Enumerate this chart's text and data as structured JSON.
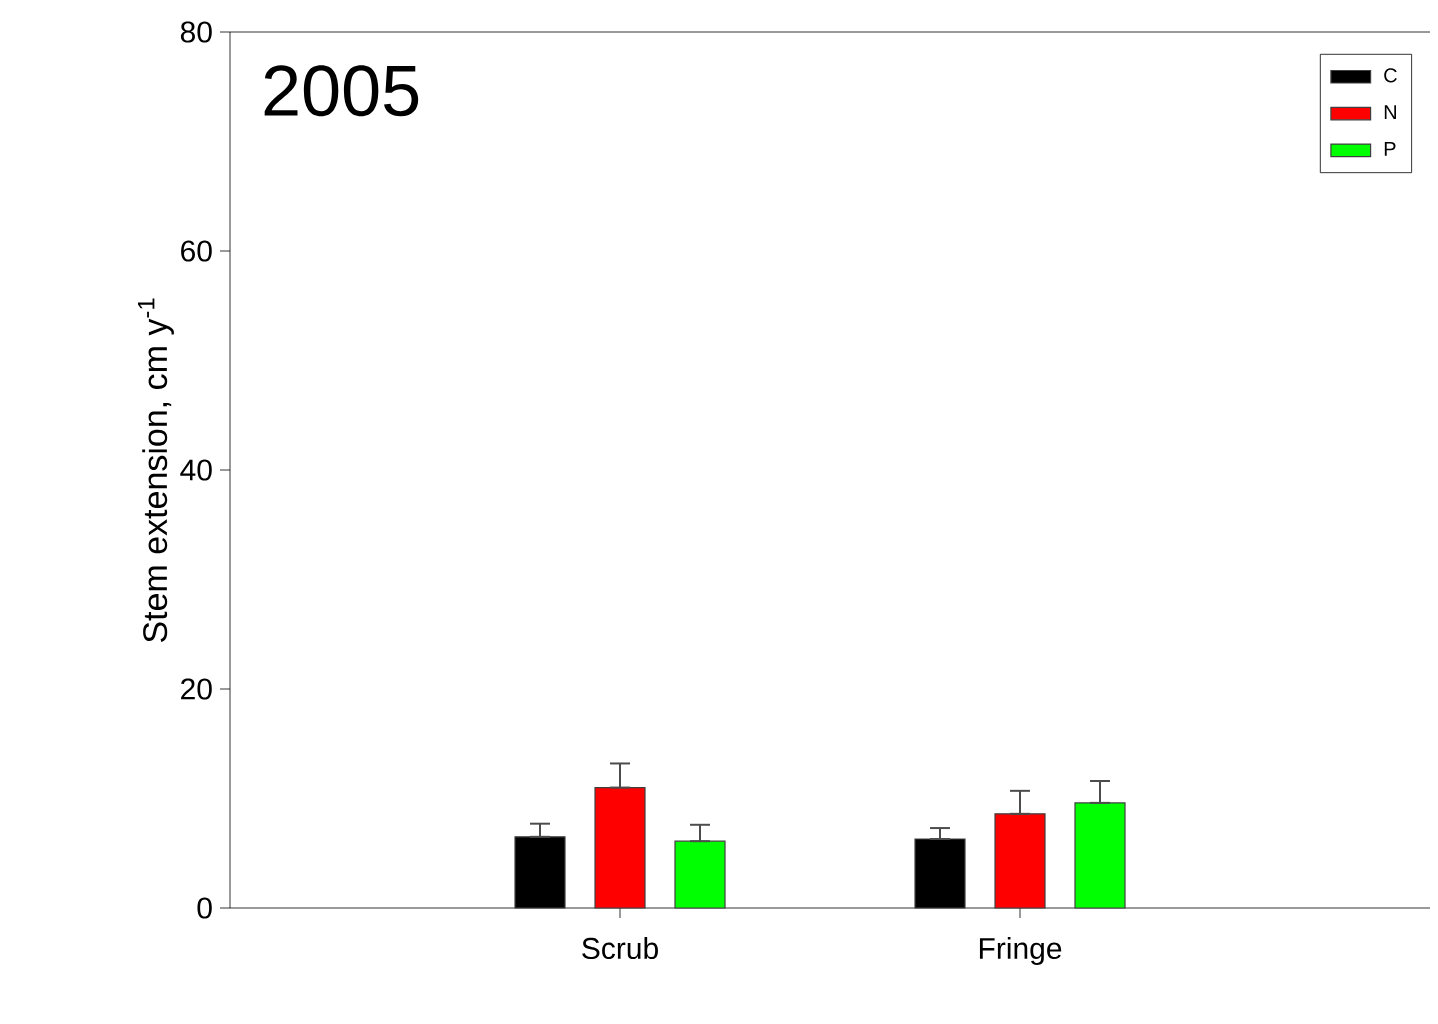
{
  "chart_data": {
    "type": "bar",
    "title": "2005",
    "ylabel": "Stem extension, cm y$^{-1}$",
    "categories": [
      "Scrub",
      "Fringe"
    ],
    "series": [
      {
        "name": "C",
        "color": "#000000",
        "values": [
          6.5,
          6.3
        ],
        "errors": [
          [
            6.5,
            7.7
          ],
          [
            6.3,
            7.3
          ]
        ]
      },
      {
        "name": "N",
        "color": "#ff0000",
        "values": [
          11.0,
          8.6
        ],
        "errors": [
          [
            11.0,
            13.2
          ],
          [
            8.6,
            10.7
          ]
        ]
      },
      {
        "name": "P",
        "color": "#00ff00",
        "values": [
          6.1,
          9.6
        ],
        "errors": [
          [
            6.1,
            7.6
          ],
          [
            9.6,
            11.6
          ]
        ]
      }
    ],
    "ylim": [
      0,
      80
    ],
    "yticks": [
      0,
      20,
      40,
      60,
      80
    ],
    "legend": "top right",
    "grid": false
  }
}
